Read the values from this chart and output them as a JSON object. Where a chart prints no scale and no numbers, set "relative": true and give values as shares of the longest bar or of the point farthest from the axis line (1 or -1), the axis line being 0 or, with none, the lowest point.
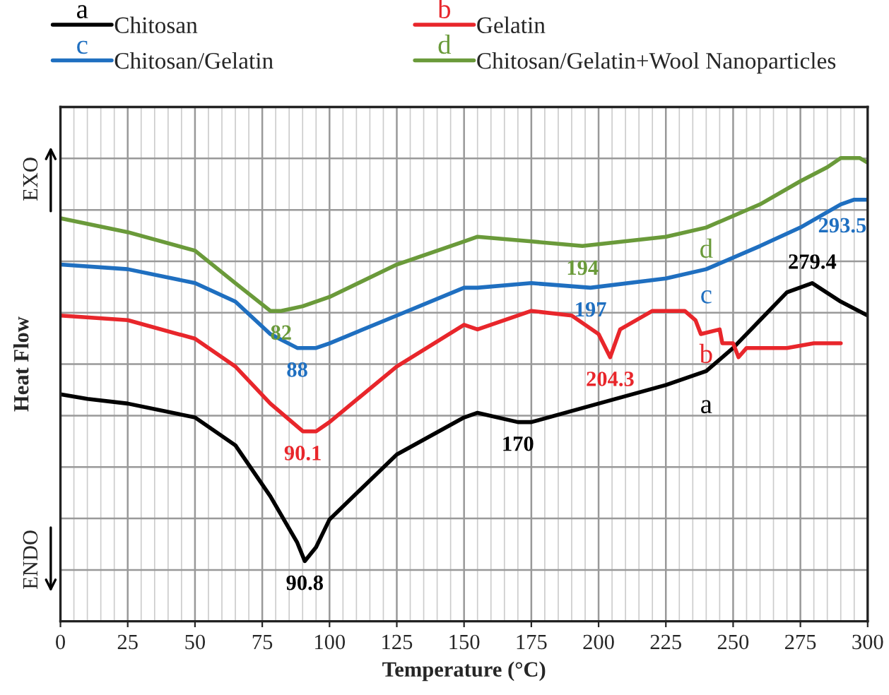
{
  "chart_data": {
    "type": "line",
    "relative": true,
    "xlabel": "Temperature (°C)",
    "ylabel": "Heat Flow",
    "xlim": [
      0,
      300
    ],
    "xticks": [
      0,
      25,
      50,
      75,
      100,
      125,
      150,
      175,
      200,
      225,
      250,
      275,
      300
    ],
    "grid": true,
    "legend": "top",
    "line_style": "solid",
    "marker": "none",
    "series": [
      {
        "name": "Chitosan",
        "color": "#000000",
        "x": [
          0,
          10,
          25,
          50,
          65,
          78,
          88,
          90.8,
          95,
          100,
          125,
          150,
          155,
          170,
          175,
          200,
          225,
          240,
          250,
          260,
          270,
          279.4,
          290,
          300
        ],
        "values": [
          0.49,
          0.48,
          0.47,
          0.44,
          0.38,
          0.27,
          0.17,
          0.13,
          0.16,
          0.22,
          0.36,
          0.44,
          0.45,
          0.43,
          0.43,
          0.47,
          0.51,
          0.54,
          0.59,
          0.65,
          0.71,
          0.73,
          0.69,
          0.66
        ]
      },
      {
        "name": "Gelatin",
        "color": "#e8262b",
        "x": [
          0,
          25,
          50,
          65,
          78,
          90.1,
          95,
          100,
          125,
          150,
          155,
          175,
          190,
          200,
          204.3,
          208,
          220,
          232,
          236,
          238,
          245,
          246,
          250,
          252,
          255,
          270,
          280,
          290
        ],
        "values": [
          0.66,
          0.65,
          0.61,
          0.55,
          0.47,
          0.41,
          0.41,
          0.43,
          0.55,
          0.64,
          0.63,
          0.67,
          0.66,
          0.62,
          0.57,
          0.63,
          0.67,
          0.67,
          0.65,
          0.62,
          0.63,
          0.6,
          0.6,
          0.57,
          0.59,
          0.59,
          0.6,
          0.6
        ]
      },
      {
        "name": "Chitosan/Gelatin",
        "color": "#1f6fc0",
        "x": [
          0,
          25,
          50,
          65,
          78,
          88,
          95,
          100,
          125,
          150,
          155,
          175,
          197,
          225,
          240,
          260,
          275,
          290,
          295,
          300
        ],
        "values": [
          0.77,
          0.76,
          0.73,
          0.69,
          0.62,
          0.59,
          0.59,
          0.6,
          0.66,
          0.72,
          0.72,
          0.73,
          0.72,
          0.74,
          0.76,
          0.81,
          0.85,
          0.9,
          0.91,
          0.91
        ]
      },
      {
        "name": "Chitosan/Gelatin+Wool Nanoparticles",
        "color": "#6a9a3a",
        "x": [
          0,
          25,
          50,
          65,
          78,
          82,
          90,
          100,
          125,
          150,
          155,
          175,
          194,
          225,
          240,
          260,
          275,
          285,
          290,
          297,
          300
        ],
        "values": [
          0.87,
          0.84,
          0.8,
          0.73,
          0.67,
          0.67,
          0.68,
          0.7,
          0.77,
          0.82,
          0.83,
          0.82,
          0.81,
          0.83,
          0.85,
          0.9,
          0.95,
          0.98,
          1.0,
          1.0,
          0.99
        ]
      }
    ],
    "annotations": [
      "a",
      "b",
      "c",
      "d",
      {
        "text": "90.8",
        "x": 90.8,
        "y": 0.13
      },
      {
        "text": "170",
        "x": 170,
        "y": 0.43
      },
      {
        "text": "279.4",
        "x": 279.4,
        "y": 0.73
      },
      {
        "text": "90.1",
        "x": 90.1,
        "y": 0.41
      },
      {
        "text": "204.3",
        "x": 204.3,
        "y": 0.57
      },
      {
        "text": "88",
        "x": 88,
        "y": 0.59
      },
      {
        "text": "197",
        "x": 197,
        "y": 0.72
      },
      {
        "text": "293.5",
        "x": 293.5,
        "y": 0.91
      },
      {
        "text": "82",
        "x": 82,
        "y": 0.67
      },
      {
        "text": "194",
        "x": 194,
        "y": 0.81
      },
      "EXO",
      "ENDO"
    ]
  }
}
